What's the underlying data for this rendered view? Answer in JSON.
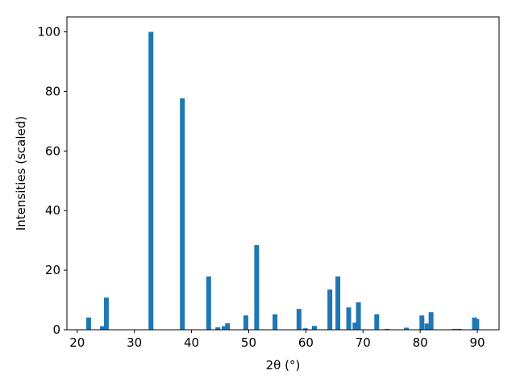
{
  "chart_data": {
    "type": "bar",
    "xlabel": "2θ (°)",
    "ylabel": "Intensities (scaled)",
    "color": "#1f77b4",
    "x": [
      22.0,
      24.4,
      25.1,
      32.9,
      38.4,
      43.0,
      44.6,
      45.7,
      46.3,
      49.5,
      51.4,
      54.6,
      58.8,
      59.9,
      61.5,
      64.2,
      65.6,
      67.5,
      68.6,
      69.2,
      72.4,
      74.2,
      77.6,
      80.3,
      81.2,
      81.9,
      86.0,
      86.8,
      89.5,
      89.9
    ],
    "values": [
      4.1,
      1.2,
      10.8,
      100,
      77.7,
      17.9,
      0.8,
      1.2,
      2.2,
      4.8,
      28.4,
      5.2,
      7.0,
      0.5,
      1.3,
      13.5,
      17.9,
      7.5,
      2.4,
      9.2,
      5.2,
      0.3,
      0.7,
      4.8,
      2.1,
      5.9,
      0.3,
      0.3,
      4.1,
      3.6
    ],
    "xlim": [
      18.2,
      93.8
    ],
    "ylim": [
      0,
      105
    ],
    "xticks": [
      20,
      30,
      40,
      50,
      60,
      70,
      80,
      90
    ],
    "yticks": [
      0,
      20,
      40,
      60,
      80,
      100
    ],
    "grid": false
  }
}
